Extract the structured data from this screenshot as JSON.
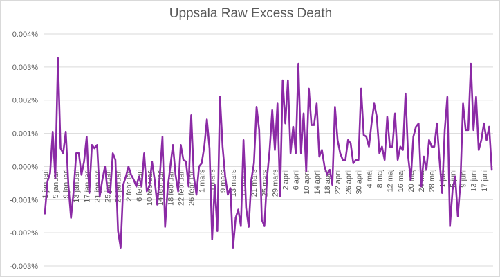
{
  "chart_data": {
    "type": "line",
    "title": "Uppsala Raw Excess Death",
    "xlabel": "",
    "ylabel": "",
    "ylim": [
      -0.003,
      0.004
    ],
    "y_tick_step": 0.001,
    "y_tick_labels": [
      "0.004%",
      "0.003%",
      "0.002%",
      "0.001%",
      "0.000%",
      "-0.001%",
      "-0.002%",
      "-0.003%"
    ],
    "x_tick_labels": [
      "1 januari",
      "5 januari",
      "9 januari",
      "13 januari",
      "17 januari",
      "21 januari",
      "25 januari",
      "29 januari",
      "2 februari",
      "6 februari",
      "10 februari",
      "14 februari",
      "18 februari",
      "22 februari",
      "26 februari",
      "1 mars",
      "5 mars",
      "9 mars",
      "13 mars",
      "17 mars",
      "21 mars",
      "25 mars",
      "29 mars",
      "2 april",
      "6 april",
      "10 april",
      "14 april",
      "18 april",
      "22 april",
      "26 april",
      "30 april",
      "4 maj",
      "8 maj",
      "12 maj",
      "16 maj",
      "20 maj",
      "24 maj",
      "28 maj",
      "1 juni",
      "5 juni",
      "9 juni",
      "13 juni",
      "17 juni"
    ],
    "x_tick_every": 4,
    "series": [
      {
        "name": "Uppsala Raw Excess Death",
        "color": "#8b2aa5",
        "values": [
          -0.00142,
          -0.00045,
          -0.0002,
          0.00105,
          -0.00035,
          0.00327,
          0.00055,
          0.0004,
          0.00105,
          -0.00055,
          -0.00155,
          -0.00075,
          0.0004,
          0.0004,
          -0.00025,
          0.00015,
          0.0009,
          -0.0008,
          0.00065,
          0.00055,
          0.00065,
          -0.0009,
          -0.0004,
          0.0,
          -0.00075,
          -0.0008,
          0.0004,
          0.0002,
          -0.00195,
          -0.00245,
          -0.00055,
          -0.0003,
          0.0,
          -0.00025,
          -0.0004,
          -0.0006,
          -0.0003,
          -0.0006,
          0.0004,
          -0.00075,
          -0.0006,
          0.00015,
          -0.0004,
          -0.00115,
          -0.00025,
          0.0009,
          -0.00182,
          -0.00065,
          0.0,
          0.00065,
          -0.00025,
          -0.00075,
          0.00065,
          0.0002,
          0.00015,
          -0.0006,
          0.00155,
          -0.0003,
          -0.00085,
          0.0,
          0.0001,
          0.0006,
          0.00142,
          0.00055,
          -0.0022,
          -0.00055,
          -0.00195,
          0.0021,
          0.0006,
          -0.0003,
          -0.00085,
          -0.00065,
          -0.00245,
          -0.00155,
          -0.0013,
          -0.0018,
          0.0008,
          -0.00125,
          -0.00182,
          -0.0004,
          0.0001,
          0.0018,
          0.0011,
          -0.0016,
          -0.0018,
          -0.00035,
          0.0005,
          0.0017,
          0.0005,
          0.0019,
          -0.0009,
          0.0026,
          0.0013,
          0.0026,
          0.0004,
          0.0012,
          0.0004,
          0.0031,
          0.0004,
          0.0016,
          -0.00015,
          0.00235,
          0.00125,
          0.00125,
          0.0019,
          0.0003,
          0.0005,
          0.0,
          -0.00025,
          -0.0001,
          -0.00055,
          0.0018,
          0.0008,
          0.0004,
          0.0002,
          0.0002,
          0.0008,
          0.0007,
          0.0001,
          0.0002,
          0.0002,
          0.00235,
          0.00095,
          0.0009,
          0.0006,
          0.0013,
          0.0019,
          0.0015,
          0.0004,
          0.0006,
          0.0002,
          0.0015,
          0.0006,
          0.0006,
          0.0016,
          0.0002,
          0.0006,
          0.0005,
          0.0022,
          0.0003,
          -0.0004,
          0.0009,
          0.0012,
          0.0013,
          -0.0006,
          0.0003,
          -0.0001,
          0.0008,
          0.0006,
          0.0006,
          0.0013,
          0.0002,
          -0.0008,
          0.0011,
          0.0021,
          -0.0018,
          -0.0007,
          -0.0003,
          -0.0015,
          -0.0005,
          0.0019,
          0.0011,
          0.0011,
          0.0031,
          0.0011,
          0.0021,
          0.0005,
          0.0008,
          0.0013,
          0.0008,
          0.0012,
          -0.0001
        ]
      }
    ],
    "grid": true,
    "legend": "none"
  }
}
